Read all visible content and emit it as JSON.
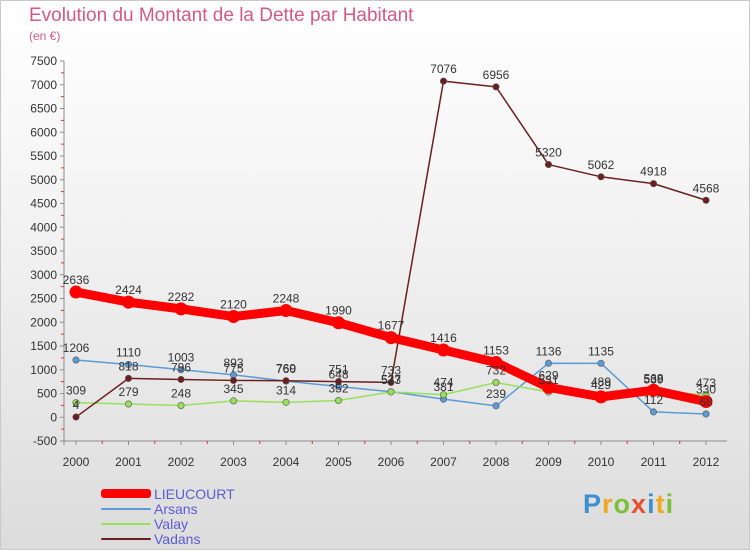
{
  "title": "Evolution du Montant de la Dette par Habitant",
  "subtitle": "(en €)",
  "brand": {
    "text": "Proxiti",
    "letter_colors": [
      "#3d8fd1",
      "#f0a81e",
      "#7cbf3b",
      "#e8502f",
      "#3d8fd1",
      "#f0a81e",
      "#7cbf3b"
    ]
  },
  "chart_data": {
    "type": "line",
    "x": [
      "2000",
      "2001",
      "2002",
      "2003",
      "2004",
      "2005",
      "2006",
      "2007",
      "2008",
      "2009",
      "2010",
      "2011",
      "2012"
    ],
    "ylim": [
      -500,
      7500
    ],
    "yticks": [
      -500,
      0,
      500,
      1000,
      1500,
      2000,
      2500,
      3000,
      3500,
      4000,
      4500,
      5000,
      5500,
      6000,
      6500,
      7000,
      7500
    ],
    "grid": false,
    "legend_position": "bottom-left",
    "series": [
      {
        "name": "LIEUCOURT",
        "color": "#ff0000",
        "values": [
          2636,
          2424,
          2282,
          2120,
          2248,
          1990,
          1677,
          1416,
          1153,
          629,
          429,
          568,
          330
        ]
      },
      {
        "name": "Arsans",
        "color": "#5b9bd5",
        "values": [
          1206,
          1110,
          1003,
          893,
          760,
          648,
          537,
          381,
          239,
          1136,
          1135,
          112,
          68
        ]
      },
      {
        "name": "Valay",
        "color": "#99e05a",
        "values": [
          309,
          279,
          248,
          345,
          314,
          352,
          533,
          474,
          732,
          531,
          489,
          539,
          473
        ]
      },
      {
        "name": "Vadans",
        "color": "#6b1f1f",
        "values": [
          4,
          818,
          796,
          775,
          769,
          751,
          733,
          7076,
          6956,
          5320,
          5062,
          4918,
          4568
        ]
      }
    ]
  }
}
